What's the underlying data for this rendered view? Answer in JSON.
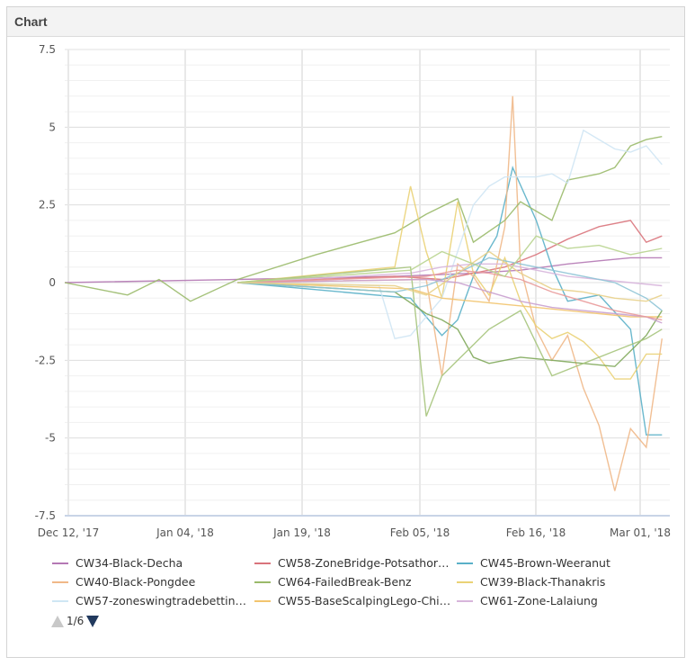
{
  "panel": {
    "title": "Chart"
  },
  "pager": {
    "text": "1/6"
  },
  "chart_data": {
    "type": "line",
    "yticks": [
      "7.5",
      "5",
      "2.5",
      "0",
      "-2.5",
      "-5",
      "-7.5"
    ],
    "ylim": [
      -7.5,
      7.5
    ],
    "xticks": [
      "Dec 12, '17",
      "Jan 04, '18",
      "Jan 19, '18",
      "Feb 05, '18",
      "Feb 16, '18",
      "Mar 01, '18"
    ],
    "grid": true,
    "legend_position": "bottom",
    "series": [
      {
        "name": "CW34-Black-Decha",
        "color": "#b478b4",
        "x": [
          8,
          30,
          50,
          60,
          66,
          72,
          76,
          80,
          84
        ],
        "y": [
          0,
          0.1,
          0.2,
          0.3,
          0.4,
          0.6,
          0.7,
          0.8,
          0.8
        ]
      },
      {
        "name": "CW58-ZoneBridge-Potsathor…",
        "color": "#d9737b",
        "x": [
          30,
          50,
          56,
          60,
          64,
          68,
          72,
          76,
          80,
          82,
          84
        ],
        "y": [
          0,
          0.2,
          0.1,
          0.3,
          0.5,
          0.9,
          1.4,
          1.8,
          2.0,
          1.3,
          1.5
        ]
      },
      {
        "name": "CW45-Brown-Weeranut",
        "color": "#5ab0c8",
        "x": [
          30,
          52,
          56,
          58,
          60,
          63,
          65,
          68,
          70,
          72,
          76,
          80,
          82,
          84
        ],
        "y": [
          0,
          -0.5,
          -1.7,
          -1.2,
          0.2,
          1.5,
          3.7,
          2.0,
          0.5,
          -0.6,
          -0.4,
          -1.5,
          -4.9,
          -4.9
        ]
      },
      {
        "name": "CW40-Black-Pongdee",
        "color": "#f0b888",
        "x": [
          30,
          54,
          56,
          58,
          60,
          62,
          64,
          65,
          66,
          68,
          70,
          72,
          74,
          76,
          78,
          80,
          82,
          84
        ],
        "y": [
          0,
          0.1,
          -3.0,
          0.6,
          0.2,
          -0.6,
          1.8,
          6.0,
          0.5,
          -1.5,
          -2.5,
          -1.7,
          -3.4,
          -4.6,
          -6.7,
          -4.7,
          -5.3,
          -1.8
        ]
      },
      {
        "name": "CW64-FailedBreak-Benz",
        "color": "#9aba6a",
        "x": [
          8,
          12,
          16,
          20,
          24,
          30,
          40,
          50,
          54,
          58,
          60,
          64,
          66,
          68,
          70,
          72,
          74,
          76,
          78,
          80,
          82,
          84
        ],
        "y": [
          0,
          -0.2,
          -0.4,
          0.1,
          -0.6,
          0.1,
          0.9,
          1.6,
          2.2,
          2.7,
          1.3,
          2.0,
          2.6,
          2.3,
          2.0,
          3.3,
          3.4,
          3.5,
          3.7,
          4.4,
          4.6,
          4.7
        ]
      },
      {
        "name": "CW39-Black-Thanakris",
        "color": "#ead276",
        "x": [
          30,
          50,
          52,
          54,
          56,
          58,
          60,
          62,
          64,
          66,
          68,
          70,
          72,
          74,
          76,
          78,
          80,
          82,
          84
        ],
        "y": [
          0,
          0.5,
          3.1,
          1.0,
          -0.5,
          2.6,
          0.3,
          -0.4,
          0.8,
          -0.6,
          -1.4,
          -1.8,
          -1.6,
          -1.9,
          -2.4,
          -3.1,
          -3.1,
          -2.3,
          -2.3
        ]
      },
      {
        "name": "CW57-zoneswingtradebettin…",
        "color": "#cfe6f4",
        "x": [
          30,
          48,
          50,
          52,
          56,
          60,
          62,
          64,
          66,
          68,
          70,
          72,
          74,
          76,
          78,
          80,
          82,
          84
        ],
        "y": [
          0,
          -0.1,
          -1.8,
          -1.7,
          -0.5,
          2.5,
          3.1,
          3.4,
          3.4,
          3.4,
          3.5,
          3.2,
          4.9,
          4.6,
          4.3,
          4.2,
          4.4,
          3.8
        ]
      },
      {
        "name": "CW55-BaseScalpingLego-Chi…",
        "color": "#f2c46e",
        "x": [
          30,
          52,
          56,
          60,
          64,
          68,
          72,
          76,
          80,
          84
        ],
        "y": [
          0,
          -0.2,
          -0.5,
          -0.6,
          -0.7,
          -0.8,
          -0.9,
          -1.0,
          -1.1,
          -1.1
        ]
      },
      {
        "name": "CW61-Zone-Lalaiung",
        "color": "#d7b5db",
        "x": [
          30,
          52,
          56,
          60,
          64,
          68,
          72,
          76,
          80,
          84
        ],
        "y": [
          0,
          0.3,
          0.5,
          0.6,
          0.6,
          0.4,
          0.2,
          0.1,
          0.0,
          -0.1
        ]
      },
      {
        "name": "",
        "color": "#7fa85a",
        "x": [
          30,
          50,
          54,
          56,
          58,
          60,
          62,
          64,
          66,
          70,
          74,
          78,
          82,
          84
        ],
        "y": [
          0,
          -0.3,
          -1.0,
          -1.2,
          -1.5,
          -2.4,
          -2.6,
          -2.5,
          -2.4,
          -2.5,
          -2.6,
          -2.7,
          -1.7,
          -0.9
        ]
      },
      {
        "name": "",
        "color": "#a6c47c",
        "x": [
          30,
          52,
          54,
          56,
          58,
          60,
          62,
          64,
          66,
          70,
          74,
          78,
          82,
          84
        ],
        "y": [
          0,
          0.5,
          -4.3,
          -3.0,
          -2.5,
          -2.0,
          -1.5,
          -1.2,
          -0.9,
          -3.0,
          -2.6,
          -2.2,
          -1.8,
          -1.5
        ]
      },
      {
        "name": "",
        "color": "#8ec4d6",
        "x": [
          30,
          50,
          54,
          58,
          62,
          66,
          70,
          74,
          78,
          82,
          84
        ],
        "y": [
          0,
          -0.3,
          -0.1,
          0.3,
          0.8,
          0.6,
          0.4,
          0.2,
          0.0,
          -0.5,
          -0.9
        ]
      },
      {
        "name": "",
        "color": "#c9a0cf",
        "x": [
          30,
          54,
          58,
          62,
          66,
          70,
          74,
          78,
          82,
          84
        ],
        "y": [
          0,
          0.1,
          0.0,
          -0.3,
          -0.6,
          -0.8,
          -0.9,
          -1.0,
          -1.1,
          -1.3
        ]
      },
      {
        "name": "",
        "color": "#e99a9a",
        "x": [
          30,
          54,
          58,
          62,
          66,
          70,
          74,
          78,
          82,
          84
        ],
        "y": [
          0,
          0.2,
          0.4,
          0.3,
          0.1,
          -0.3,
          -0.6,
          -0.9,
          -1.1,
          -1.2
        ]
      },
      {
        "name": "",
        "color": "#e8d08a",
        "x": [
          30,
          50,
          54,
          58,
          62,
          66,
          70,
          74,
          78,
          82,
          84
        ],
        "y": [
          0,
          -0.1,
          -0.4,
          0.3,
          1.0,
          0.3,
          -0.2,
          -0.3,
          -0.5,
          -0.6,
          -0.4
        ]
      },
      {
        "name": "",
        "color": "#b8d48e",
        "x": [
          30,
          52,
          56,
          60,
          64,
          68,
          72,
          76,
          80,
          84
        ],
        "y": [
          0,
          0.4,
          1.0,
          0.6,
          0.2,
          1.5,
          1.1,
          1.2,
          0.9,
          1.1
        ]
      }
    ],
    "x_domain": [
      8,
      85
    ]
  }
}
